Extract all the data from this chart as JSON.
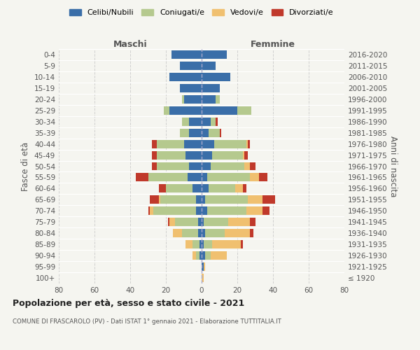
{
  "age_groups": [
    "100+",
    "95-99",
    "90-94",
    "85-89",
    "80-84",
    "75-79",
    "70-74",
    "65-69",
    "60-64",
    "55-59",
    "50-54",
    "45-49",
    "40-44",
    "35-39",
    "30-34",
    "25-29",
    "20-24",
    "15-19",
    "10-14",
    "5-9",
    "0-4"
  ],
  "birth_years": [
    "≤ 1920",
    "1921-1925",
    "1926-1930",
    "1931-1935",
    "1936-1940",
    "1941-1945",
    "1946-1950",
    "1951-1955",
    "1956-1960",
    "1961-1965",
    "1966-1970",
    "1971-1975",
    "1976-1980",
    "1981-1985",
    "1986-1990",
    "1991-1995",
    "1996-2000",
    "2001-2005",
    "2006-2010",
    "2011-2015",
    "2016-2020"
  ],
  "colors": {
    "celibi": "#3a6ea8",
    "coniugati": "#b5c98e",
    "vedovi": "#f0c070",
    "divorziati": "#c0392b"
  },
  "maschi": {
    "celibi": [
      0,
      0,
      1,
      1,
      2,
      2,
      3,
      3,
      5,
      8,
      7,
      9,
      10,
      7,
      7,
      18,
      10,
      12,
      18,
      12,
      17
    ],
    "coniugati": [
      0,
      0,
      2,
      4,
      9,
      13,
      24,
      20,
      15,
      22,
      18,
      16,
      15,
      5,
      4,
      3,
      1,
      0,
      0,
      0,
      0
    ],
    "vedovi": [
      0,
      0,
      2,
      4,
      5,
      3,
      2,
      1,
      0,
      0,
      0,
      0,
      0,
      0,
      0,
      0,
      0,
      0,
      0,
      0,
      0
    ],
    "divorziati": [
      0,
      0,
      0,
      0,
      0,
      1,
      1,
      5,
      4,
      7,
      3,
      3,
      3,
      0,
      0,
      0,
      0,
      0,
      0,
      0,
      0
    ]
  },
  "femmine": {
    "celibi": [
      0,
      1,
      2,
      1,
      2,
      1,
      3,
      2,
      4,
      3,
      5,
      6,
      7,
      4,
      5,
      20,
      8,
      10,
      16,
      8,
      14
    ],
    "coniugati": [
      0,
      0,
      3,
      5,
      11,
      14,
      22,
      24,
      15,
      24,
      19,
      17,
      18,
      6,
      3,
      8,
      2,
      0,
      0,
      0,
      0
    ],
    "vedovi": [
      1,
      1,
      9,
      16,
      14,
      12,
      9,
      8,
      4,
      5,
      3,
      1,
      1,
      0,
      0,
      0,
      0,
      0,
      0,
      0,
      0
    ],
    "divorziati": [
      0,
      0,
      0,
      1,
      2,
      3,
      4,
      7,
      2,
      5,
      3,
      2,
      1,
      1,
      1,
      0,
      0,
      0,
      0,
      0,
      0
    ]
  },
  "xlim": 80,
  "title": "Popolazione per età, sesso e stato civile - 2021",
  "subtitle": "COMUNE DI FRASCAROLO (PV) - Dati ISTAT 1° gennaio 2021 - Elaborazione TUTTITALIA.IT",
  "ylabel_left": "Fasce di età",
  "ylabel_right": "Anni di nascita",
  "xlabel_maschi": "Maschi",
  "xlabel_femmine": "Femmine",
  "legend_labels": [
    "Celibi/Nubili",
    "Coniugati/e",
    "Vedovi/e",
    "Divorziati/e"
  ],
  "background_color": "#f5f5f0"
}
